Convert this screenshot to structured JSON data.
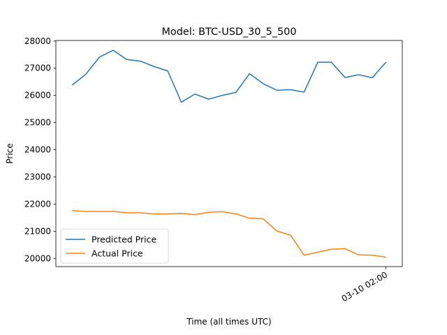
{
  "chart_data": {
    "type": "line",
    "title": "Model: BTC-USD_30_5_500",
    "xlabel": "Time (all times UTC)",
    "ylabel": "Price",
    "x_index": [
      0,
      1,
      2,
      3,
      4,
      5,
      6,
      7,
      8,
      9,
      10,
      11,
      12,
      13,
      14,
      15,
      16,
      17,
      18,
      19,
      20,
      21,
      22,
      23
    ],
    "x_tick_labels": [
      {
        "index": 23,
        "label": "03-10 02:00"
      }
    ],
    "xlim": [
      -1.2,
      24.2
    ],
    "ylim": [
      19700,
      28020
    ],
    "y_ticks": [
      20000,
      21000,
      22000,
      23000,
      24000,
      25000,
      26000,
      27000,
      28000
    ],
    "y_tick_labels": [
      "20000",
      "21000",
      "22000",
      "23000",
      "24000",
      "25000",
      "26000",
      "27000",
      "28000"
    ],
    "grid": false,
    "legend_position": "lower-left",
    "series": [
      {
        "name": "Predicted Price",
        "color": "#1f77b4",
        "values": [
          26380,
          26780,
          27410,
          27660,
          27320,
          27260,
          27060,
          26900,
          25750,
          26050,
          25860,
          26000,
          26110,
          26800,
          26430,
          26190,
          26210,
          26120,
          27220,
          27220,
          26660,
          26760,
          26650,
          27220
        ]
      },
      {
        "name": "Actual Price",
        "color": "#ff7f0e",
        "values": [
          21760,
          21730,
          21730,
          21730,
          21680,
          21680,
          21640,
          21640,
          21660,
          21610,
          21700,
          21720,
          21640,
          21480,
          21460,
          21010,
          20860,
          20120,
          20230,
          20340,
          20360,
          20130,
          20120,
          20050
        ]
      }
    ]
  }
}
